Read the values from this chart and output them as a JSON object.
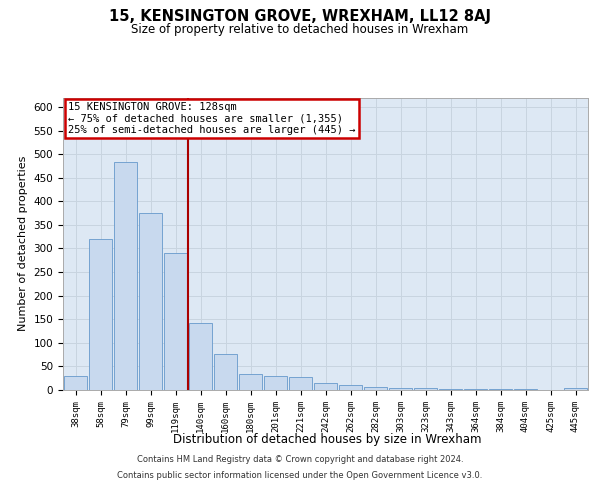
{
  "title": "15, KENSINGTON GROVE, WREXHAM, LL12 8AJ",
  "subtitle": "Size of property relative to detached houses in Wrexham",
  "xlabel": "Distribution of detached houses by size in Wrexham",
  "ylabel": "Number of detached properties",
  "categories": [
    "38sqm",
    "58sqm",
    "79sqm",
    "99sqm",
    "119sqm",
    "140sqm",
    "160sqm",
    "180sqm",
    "201sqm",
    "221sqm",
    "242sqm",
    "262sqm",
    "282sqm",
    "303sqm",
    "323sqm",
    "343sqm",
    "364sqm",
    "384sqm",
    "404sqm",
    "425sqm",
    "445sqm"
  ],
  "values": [
    30,
    320,
    483,
    375,
    290,
    143,
    77,
    33,
    29,
    28,
    15,
    10,
    7,
    5,
    4,
    3,
    3,
    2,
    2,
    1,
    4
  ],
  "bar_color": "#c8d9ee",
  "bar_edge_color": "#6699cc",
  "vline_index": 4.5,
  "vline_color": "#aa0000",
  "annotation_line1": "15 KENSINGTON GROVE: 128sqm",
  "annotation_line2": "← 75% of detached houses are smaller (1,355)",
  "annotation_line3": "25% of semi-detached houses are larger (445) →",
  "annotation_box_edgecolor": "#cc0000",
  "annotation_bg": "#ffffff",
  "ylim": [
    0,
    620
  ],
  "yticks": [
    0,
    50,
    100,
    150,
    200,
    250,
    300,
    350,
    400,
    450,
    500,
    550,
    600
  ],
  "grid_color": "#c8d4e0",
  "bg_color": "#dde8f4",
  "footer_line1": "Contains HM Land Registry data © Crown copyright and database right 2024.",
  "footer_line2": "Contains public sector information licensed under the Open Government Licence v3.0."
}
